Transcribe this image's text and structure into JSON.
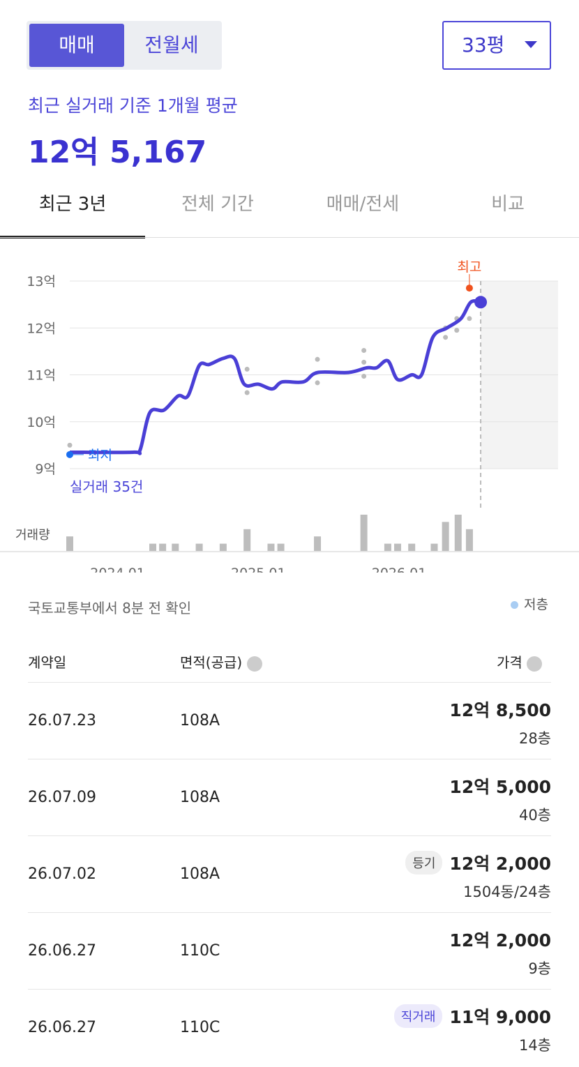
{
  "trade_tabs": [
    "매매",
    "전월세"
  ],
  "size_select": "33평",
  "summary": {
    "label": "최근 실거래 기준 1개월 평균",
    "value": "12억 5,167"
  },
  "period_tabs": [
    "최근 3년",
    "전체 기간",
    "매매/전세",
    "비교"
  ],
  "chart": {
    "type": "line",
    "ylim": [
      9,
      13
    ],
    "yticks": [
      {
        "value": 13,
        "label": "13억"
      },
      {
        "value": 12,
        "label": "12억"
      },
      {
        "value": 11,
        "label": "11억"
      },
      {
        "value": 10,
        "label": "10억"
      },
      {
        "value": 9,
        "label": "9억"
      }
    ],
    "xlim": [
      2023.66,
      2027.13
    ],
    "xticks": [
      {
        "value": 2024,
        "label": "2024.01"
      },
      {
        "value": 2025,
        "label": "2025.01"
      },
      {
        "value": 2026,
        "label": "2026.01"
      }
    ],
    "line": {
      "color": "#4a3fd6",
      "x": [
        2023.66,
        2024.11,
        2024.16,
        2024.23,
        2024.33,
        2024.43,
        2024.5,
        2024.58,
        2024.65,
        2024.75,
        2024.83,
        2024.9,
        2025.0,
        2025.1,
        2025.17,
        2025.32,
        2025.42,
        2025.64,
        2025.77,
        2025.84,
        2025.92,
        2025.99,
        2026.09,
        2026.16,
        2026.24,
        2026.34,
        2026.44,
        2026.51,
        2026.58
      ],
      "values": [
        9.35,
        9.35,
        9.4,
        10.2,
        10.25,
        10.55,
        10.55,
        11.2,
        11.22,
        11.35,
        11.35,
        10.8,
        10.8,
        10.7,
        10.85,
        10.85,
        11.05,
        11.05,
        11.15,
        11.15,
        11.3,
        10.9,
        11.0,
        11.0,
        11.8,
        12.0,
        12.2,
        12.55,
        12.55
      ]
    },
    "trades": {
      "color": "#bbbbbb",
      "x": [
        2023.66,
        2024.92,
        2024.92,
        2025.42,
        2025.42,
        2025.75,
        2025.75,
        2025.75,
        2026.33,
        2026.33,
        2026.41,
        2026.41,
        2026.5
      ],
      "values": [
        9.5,
        11.12,
        10.62,
        11.33,
        10.83,
        11.52,
        11.27,
        10.97,
        12.0,
        11.8,
        12.2,
        11.95,
        12.2
      ]
    },
    "high": {
      "label": "최고",
      "x": 2026.5,
      "value": 12.85,
      "color": "#f0521e"
    },
    "low": {
      "label": "최저",
      "x": 2023.66,
      "value": 9.3,
      "color": "#1a6ef0"
    },
    "count_label": "실거래 35건",
    "volume": {
      "label": "거래량",
      "color": "#bdbdbd",
      "x": [
        2023.66,
        2024.25,
        2024.32,
        2024.41,
        2024.58,
        2024.75,
        2024.92,
        2025.09,
        2025.16,
        2025.42,
        2025.75,
        2025.92,
        2025.99,
        2026.09,
        2026.25,
        2026.33,
        2026.42,
        2026.5
      ],
      "values": [
        2,
        1,
        1,
        1,
        1,
        1,
        3,
        1,
        1,
        2,
        5,
        1,
        1,
        1,
        1,
        4,
        5,
        3
      ]
    }
  },
  "source_note": "국토교통부에서 8분 전 확인",
  "legend": "저층",
  "table": {
    "headers": [
      "계약일",
      "면적(공급)",
      "가격"
    ],
    "rows": [
      {
        "date": "26.07.23",
        "area": "108A",
        "price": "12억 8,500",
        "floor": "28층"
      },
      {
        "date": "26.07.09",
        "area": "108A",
        "price": "12억 5,000",
        "floor": "40층"
      },
      {
        "date": "26.07.02",
        "area": "108A",
        "badge": "등기",
        "price": "12억 2,000",
        "floor": "1504동/24층"
      },
      {
        "date": "26.06.27",
        "area": "110C",
        "price": "12억 2,000",
        "floor": "9층"
      },
      {
        "date": "26.06.27",
        "area": "110C",
        "badge": "직거래",
        "price": "11억 9,000",
        "floor": "14층"
      }
    ]
  }
}
